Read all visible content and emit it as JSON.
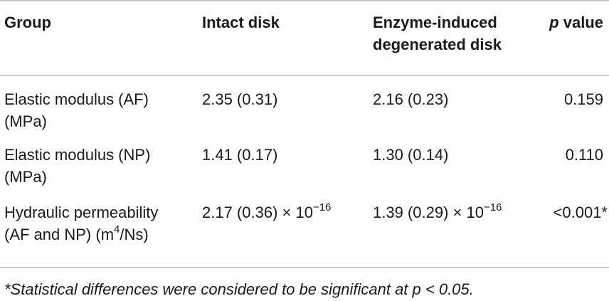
{
  "table": {
    "headers": {
      "group": "Group",
      "intact": "Intact disk",
      "degenerated_line1": "Enzyme-induced",
      "degenerated_line2": "degenerated disk",
      "p_symbol": "p",
      "p_rest": " value"
    },
    "rows": [
      {
        "group_line1": "Elastic modulus (AF)",
        "group_line2": "(MPa)",
        "intact": "2.35 (0.31)",
        "degenerated": "2.16 (0.23)",
        "p": "0.159"
      },
      {
        "group_line1": "Elastic modulus (NP)",
        "group_line2": "(MPa)",
        "intact": "1.41 (0.17)",
        "degenerated": "1.30 (0.14)",
        "p": "0.110"
      },
      {
        "group_line1": "Hydraulic permeability",
        "group_line2_pre": "(AF and NP) (m",
        "group_line2_sup": "4",
        "group_line2_post": "/Ns)",
        "intact_base": "2.17 (0.36) × 10",
        "intact_exp": "−16",
        "degenerated_base": "1.39 (0.29) × 10",
        "degenerated_exp": "−16",
        "p": "<0.001*"
      }
    ]
  },
  "footnote": "*Statistical differences were considered to be significant at p < 0.05."
}
